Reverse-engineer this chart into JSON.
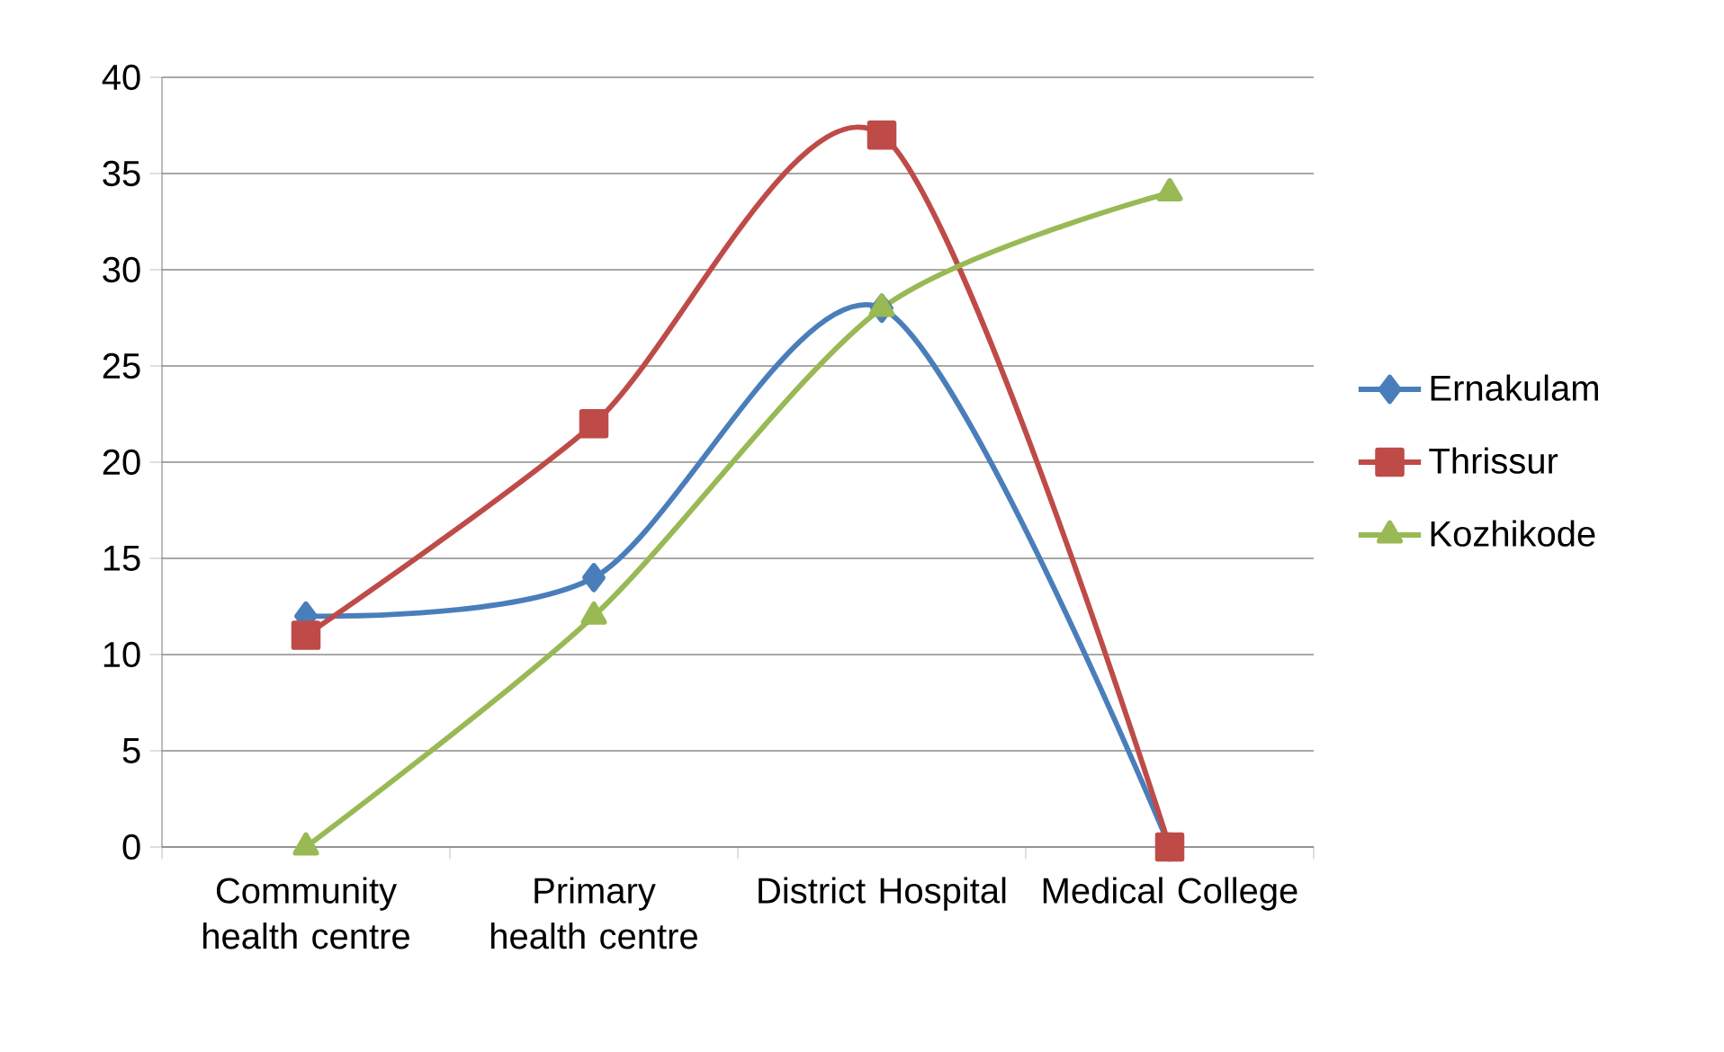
{
  "chart_data": {
    "type": "line",
    "categories": [
      "Community health centre",
      "Primary health centre",
      "District Hospital",
      "Medical College"
    ],
    "series": [
      {
        "name": "Ernakulam",
        "color": "#4a7ebb",
        "marker": "diamond",
        "values": [
          12,
          14,
          28,
          0
        ]
      },
      {
        "name": "Thrissur",
        "color": "#be4b48",
        "marker": "square",
        "values": [
          11,
          22,
          37,
          0
        ]
      },
      {
        "name": "Kozhikode",
        "color": "#98b954",
        "marker": "triangle",
        "values": [
          0,
          12,
          28,
          34
        ]
      }
    ],
    "ylim": [
      0,
      40
    ],
    "yticks": [
      0,
      5,
      10,
      15,
      20,
      25,
      30,
      35,
      40
    ],
    "grid": "y",
    "legend": "right",
    "line_style": "solid"
  }
}
